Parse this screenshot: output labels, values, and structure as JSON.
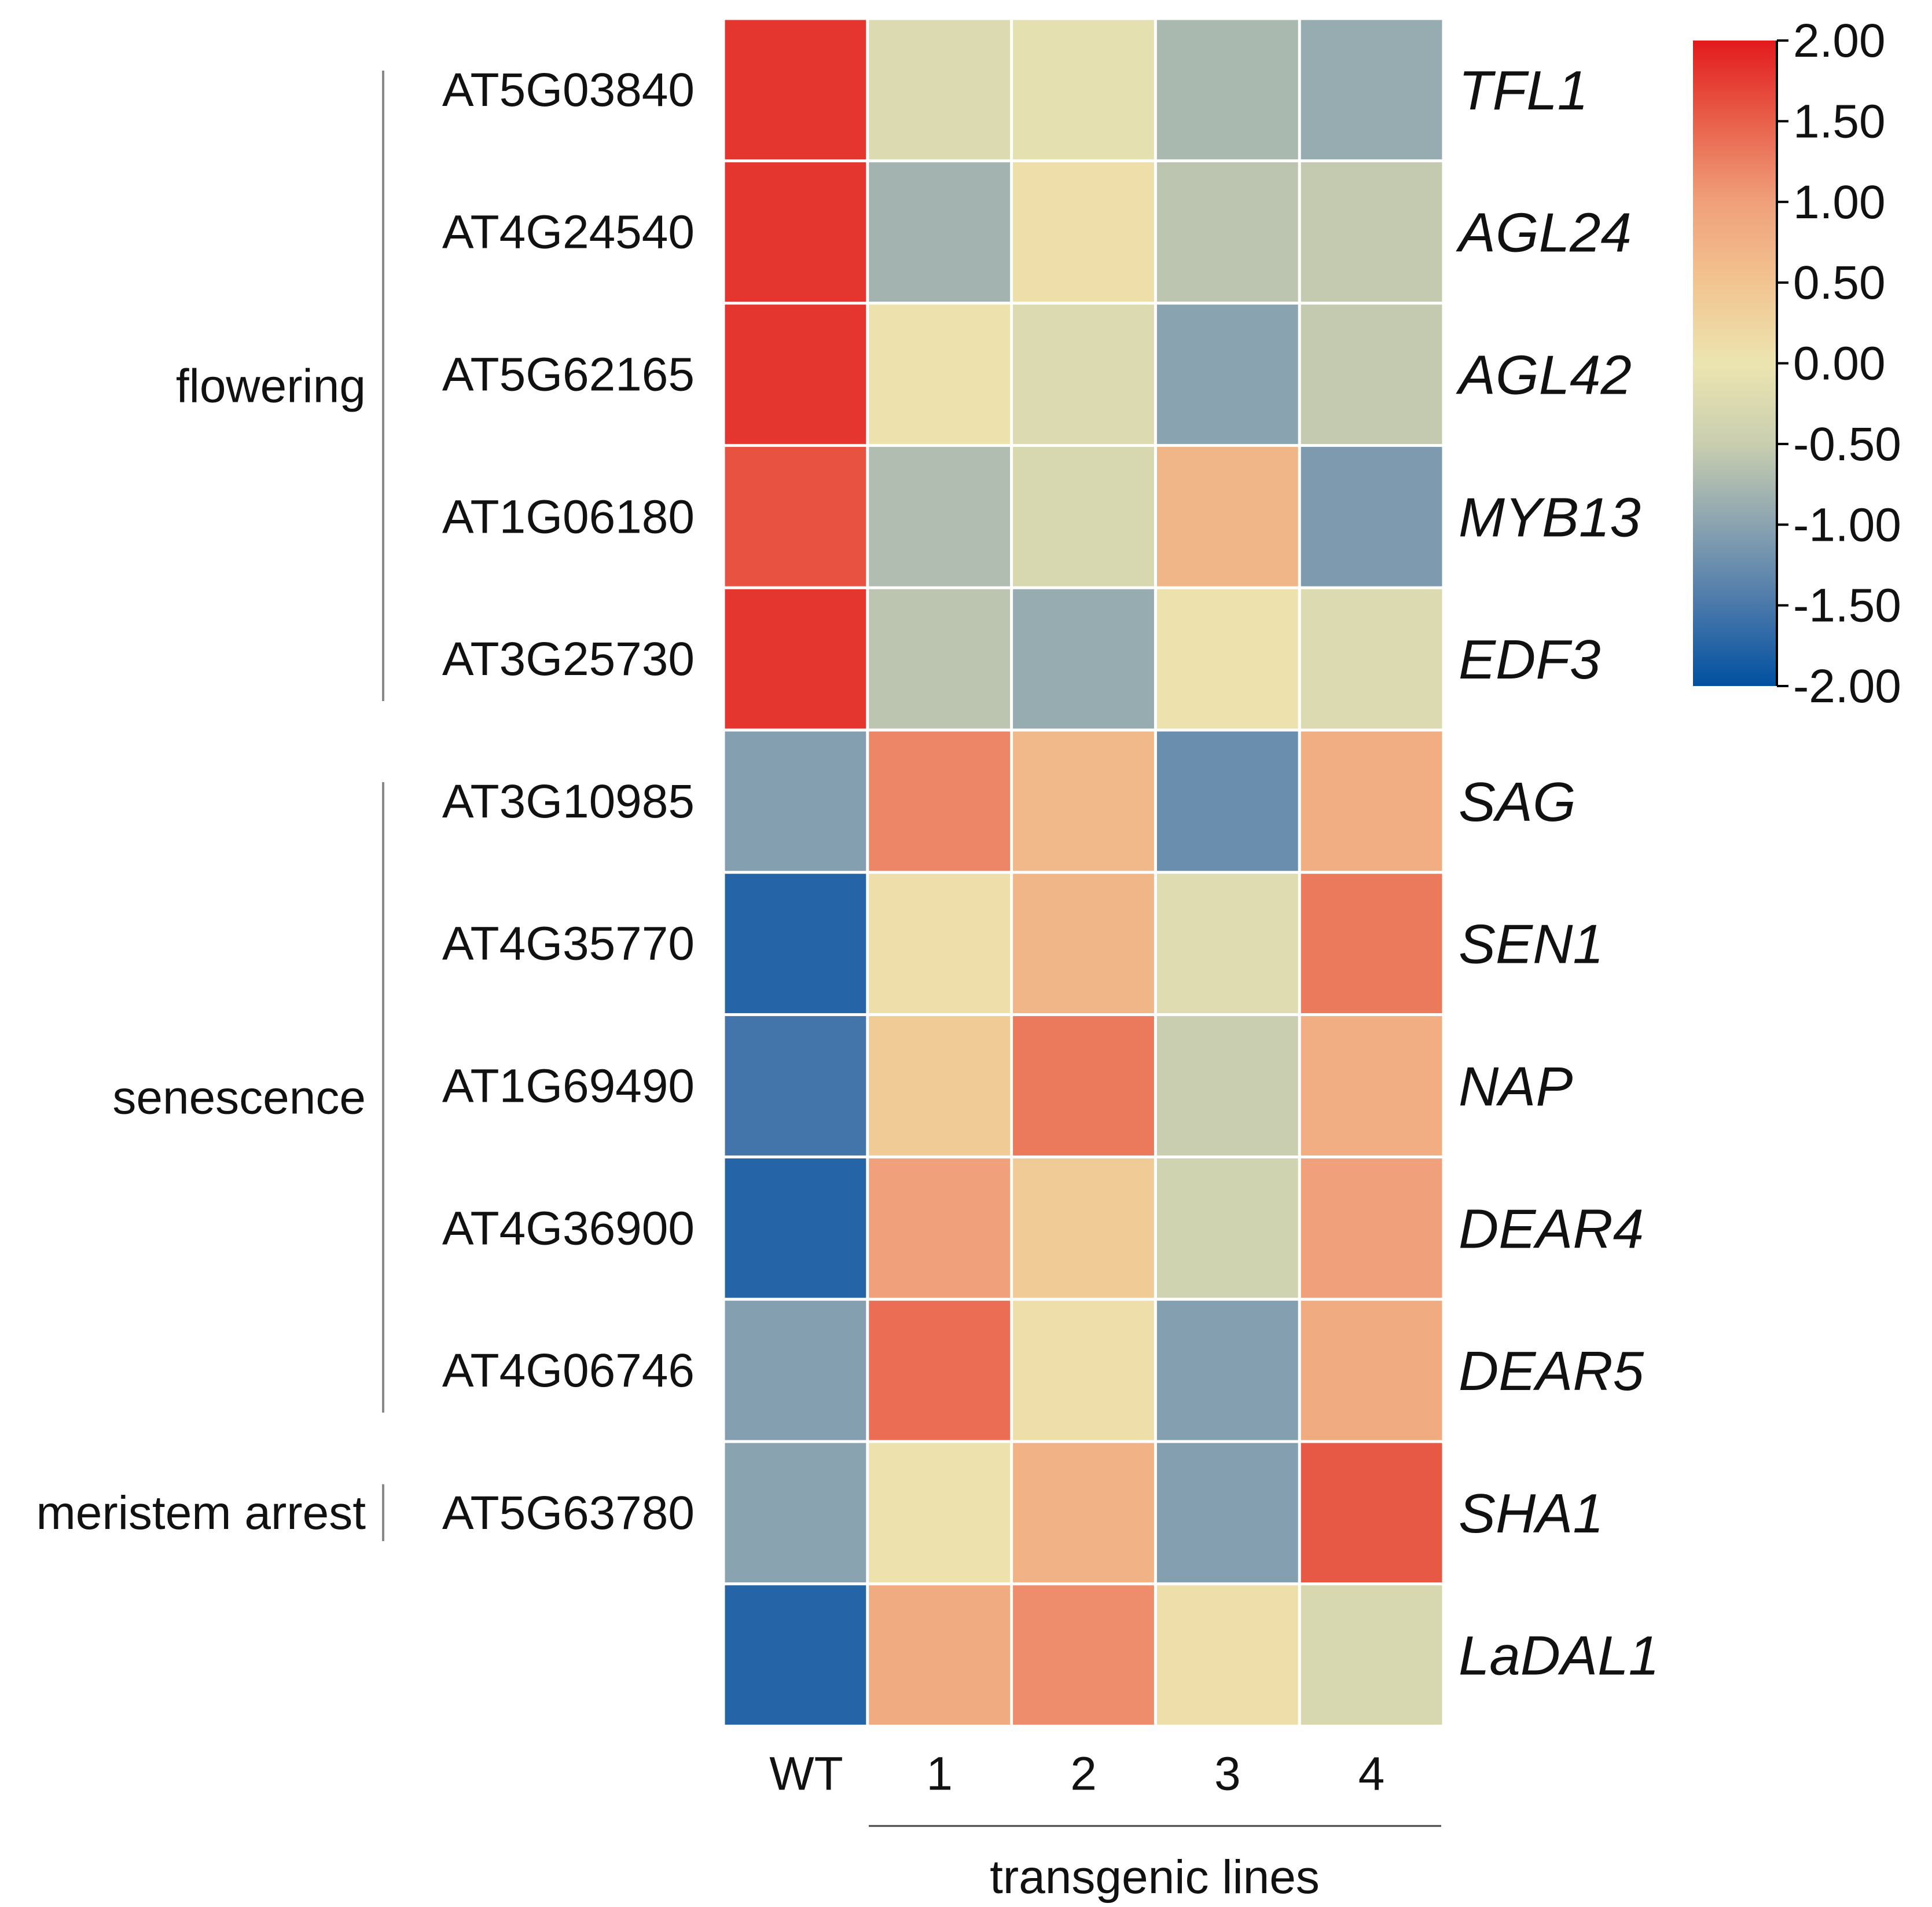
{
  "chart_data": {
    "type": "heatmap",
    "columns": [
      "WT",
      "1",
      "2",
      "3",
      "4"
    ],
    "column_group_label": "transgenic lines",
    "column_group_members": [
      "1",
      "2",
      "3",
      "4"
    ],
    "rows": [
      {
        "id": "AT5G03840",
        "gene": "TFL1",
        "values": [
          1.8,
          -0.25,
          -0.1,
          -0.75,
          -0.9
        ]
      },
      {
        "id": "AT4G24540",
        "gene": "AGL24",
        "values": [
          1.8,
          -0.8,
          0.1,
          -0.6,
          -0.55
        ]
      },
      {
        "id": "AT5G62165",
        "gene": "AGL42",
        "values": [
          1.8,
          0.05,
          -0.25,
          -1.0,
          -0.55
        ]
      },
      {
        "id": "AT1G06180",
        "gene": "MYB13",
        "values": [
          1.6,
          -0.7,
          -0.3,
          0.7,
          -1.1
        ]
      },
      {
        "id": "AT3G25730",
        "gene": "EDF3",
        "values": [
          1.8,
          -0.6,
          -0.9,
          0.05,
          -0.25
        ]
      },
      {
        "id": "AT3G10985",
        "gene": "SAG",
        "values": [
          -1.05,
          1.2,
          0.65,
          -1.25,
          0.8
        ]
      },
      {
        "id": "AT4G35770",
        "gene": "SEN1",
        "values": [
          -1.75,
          0.1,
          0.7,
          -0.2,
          1.3
        ]
      },
      {
        "id": "AT1G69490",
        "gene": "NAP",
        "values": [
          -1.55,
          0.4,
          1.3,
          -0.5,
          0.8
        ]
      },
      {
        "id": "AT4G36900",
        "gene": "DEAR4",
        "values": [
          -1.75,
          1.0,
          0.4,
          -0.4,
          1.0
        ]
      },
      {
        "id": "AT4G06746",
        "gene": "DEAR5",
        "values": [
          -1.05,
          1.4,
          0.1,
          -1.05,
          0.85
        ]
      },
      {
        "id": "AT5G63780",
        "gene": "SHA1",
        "values": [
          -1.0,
          0.05,
          0.75,
          -1.05,
          1.55
        ]
      },
      {
        "id": "",
        "gene": "LaDAL1",
        "values": [
          -1.75,
          0.85,
          1.15,
          0.1,
          -0.3
        ]
      }
    ],
    "row_groups": [
      {
        "label": "flowering",
        "rows": [
          0,
          4
        ]
      },
      {
        "label": "senescence",
        "rows": [
          5,
          9
        ]
      },
      {
        "label": "meristem arrest",
        "rows": [
          10,
          10
        ]
      }
    ],
    "colorbar": {
      "min": -2.0,
      "max": 2.0,
      "ticks": [
        "2.00",
        "1.50",
        "1.00",
        "0.50",
        "0.00",
        "-0.50",
        "-1.00",
        "-1.50",
        "-2.00"
      ],
      "stops": [
        "#0050a0",
        "#4a78ab",
        "#8aa3b0",
        "#c9ceb0",
        "#ece5b0",
        "#f2c490",
        "#f0a07a",
        "#e8604a",
        "#e21a1c"
      ]
    }
  }
}
